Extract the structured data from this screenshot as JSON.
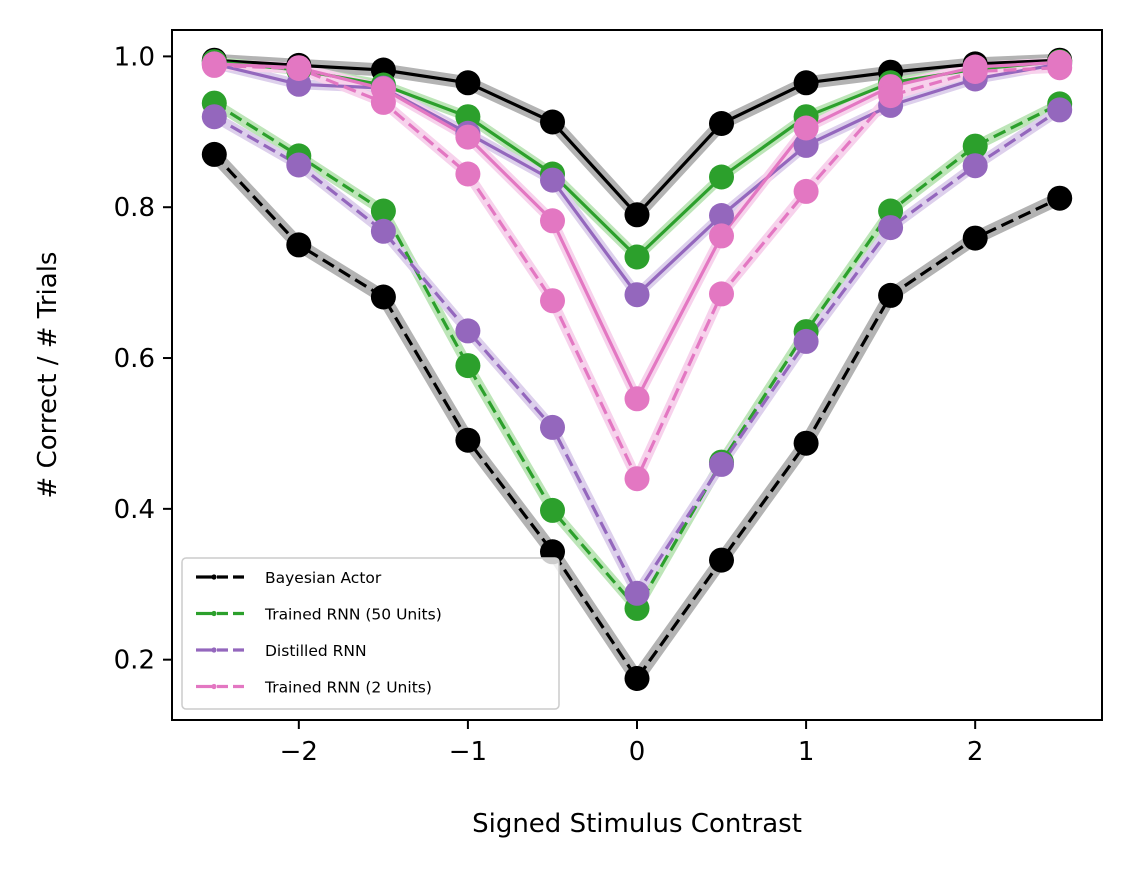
{
  "chart_data": {
    "type": "line",
    "xlabel": "Signed Stimulus Contrast",
    "ylabel": "# Correct / # Trials",
    "xlim": [
      -2.75,
      2.75
    ],
    "ylim": [
      0.12,
      1.035
    ],
    "x_ticks": [
      -2,
      -1,
      0,
      1,
      2
    ],
    "x_tick_labels": [
      "−2",
      "−1",
      "0",
      "1",
      "2"
    ],
    "y_ticks": [
      0.2,
      0.4,
      0.6,
      0.8,
      1.0
    ],
    "y_tick_labels": [
      "0.2",
      "0.4",
      "0.6",
      "0.8",
      "1.0"
    ],
    "legend_position": "lower-left",
    "x": [
      -2.5,
      -2.0,
      -1.5,
      -1.0,
      -0.5,
      0.0,
      0.5,
      1.0,
      1.5,
      2.0,
      2.5
    ],
    "series": [
      {
        "name": "Bayesian Actor",
        "color": "#000000",
        "band_color": "#b3b3b3",
        "solid": [
          0.995,
          0.988,
          0.982,
          0.965,
          0.913,
          0.79,
          0.911,
          0.965,
          0.979,
          0.99,
          0.995
        ],
        "dashed": [
          0.87,
          0.75,
          0.681,
          0.491,
          0.343,
          0.175,
          0.332,
          0.487,
          0.683,
          0.759,
          0.812
        ]
      },
      {
        "name": "Trained RNN (50 Units)",
        "color": "#2ca02c",
        "band_color": "#bde5b8",
        "solid": [
          0.993,
          0.982,
          0.962,
          0.92,
          0.844,
          0.734,
          0.84,
          0.92,
          0.965,
          0.983,
          0.993
        ],
        "dashed": [
          0.938,
          0.868,
          0.795,
          0.59,
          0.398,
          0.268,
          0.462,
          0.635,
          0.795,
          0.881,
          0.937
        ]
      },
      {
        "name": "Distilled RNN",
        "color": "#9467bd",
        "band_color": "#ddd0ec",
        "solid": [
          0.99,
          0.963,
          0.958,
          0.898,
          0.836,
          0.684,
          0.789,
          0.882,
          0.935,
          0.97,
          0.99
        ],
        "dashed": [
          0.92,
          0.856,
          0.768,
          0.636,
          0.508,
          0.288,
          0.459,
          0.622,
          0.773,
          0.855,
          0.929
        ]
      },
      {
        "name": "Trained RNN (2 Units)",
        "color": "#e377c2",
        "band_color": "#f7d2ec",
        "solid": [
          0.99,
          0.985,
          0.957,
          0.893,
          0.782,
          0.546,
          0.762,
          0.905,
          0.96,
          0.986,
          0.992
        ],
        "dashed": [
          0.988,
          0.984,
          0.939,
          0.844,
          0.676,
          0.44,
          0.685,
          0.821,
          0.948,
          0.98,
          0.985
        ]
      }
    ]
  }
}
